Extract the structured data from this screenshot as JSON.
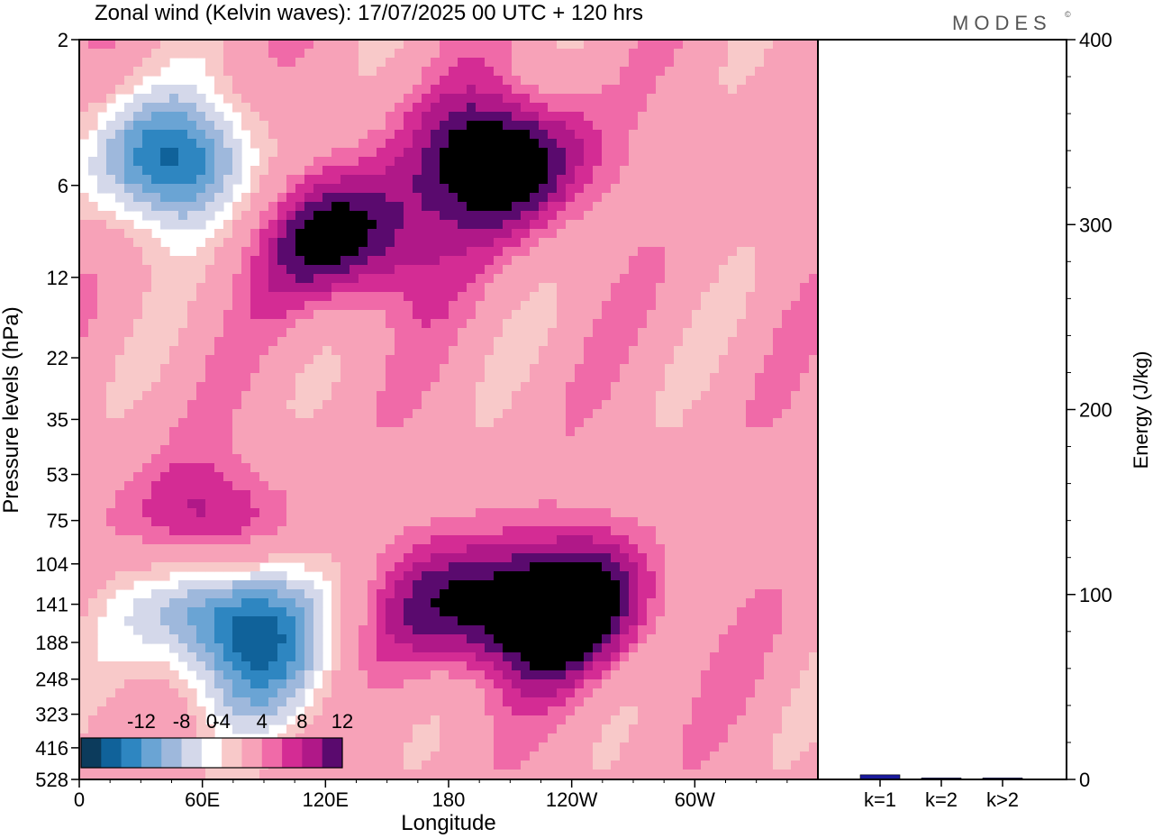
{
  "chart_data": [
    {
      "type": "heatmap",
      "title": "Zonal wind (Kelvin waves):  17/07/2025  00 UTC  + 120 hrs",
      "xlabel": "Longitude",
      "ylabel": "Pressure levels (hPa)",
      "x_ticks": [
        "0",
        "60E",
        "120E",
        "180",
        "120W",
        "60W"
      ],
      "y_ticks": [
        "2",
        "6",
        "12",
        "22",
        "35",
        "53",
        "75",
        "104",
        "141",
        "188",
        "248",
        "323",
        "416",
        "528"
      ],
      "y_scale": "log",
      "color_levels": [
        -16,
        -14,
        -12,
        -10,
        -8,
        -6,
        -4,
        -2,
        2,
        4,
        6,
        8,
        10,
        12,
        14
      ],
      "colorbar_labels": [
        "-12",
        "-8",
        "-4",
        "0",
        "4",
        "8",
        "12"
      ],
      "colorbar_colors": [
        "#0c3b5c",
        "#10629a",
        "#2e86c1",
        "#6aa4d4",
        "#9eb8dc",
        "#d4d8ea",
        "#ffffff",
        "#f8c9c9",
        "#f7a2b8",
        "#f06aa8",
        "#d42c94",
        "#b01888",
        "#5a0a6e"
      ],
      "features": [
        {
          "sign": "negative",
          "lon": 70,
          "level": 141,
          "magnitude": 16
        },
        {
          "sign": "positive",
          "lon": 62,
          "level": 85,
          "magnitude": 10
        },
        {
          "sign": "negative",
          "lon": 45,
          "level": 5,
          "magnitude": 14
        },
        {
          "sign": "positive",
          "lon": 205,
          "level": 5,
          "magnitude": 14
        },
        {
          "sign": "positive",
          "lon": 130,
          "level": 9,
          "magnitude": 12
        },
        {
          "sign": "positive",
          "lon": 240,
          "level": 140,
          "magnitude": 12
        },
        {
          "sign": "positive",
          "lon": 190,
          "level": 150,
          "magnitude": 10
        },
        {
          "sign": "negative",
          "lon": 90,
          "level": 248,
          "magnitude": 6
        }
      ]
    },
    {
      "type": "bar",
      "categories": [
        "k=1",
        "k=2",
        "k>2"
      ],
      "values": [
        2.5,
        0.8,
        0.8
      ],
      "ylabel": "Energy (J/kg)",
      "ylim": [
        0,
        400
      ],
      "y_ticks": [
        "0",
        "100",
        "200",
        "300",
        "400"
      ],
      "bar_color": "#1a1a9c"
    }
  ],
  "branding": {
    "logo_text": "MODES",
    "logo_mark": "©"
  }
}
